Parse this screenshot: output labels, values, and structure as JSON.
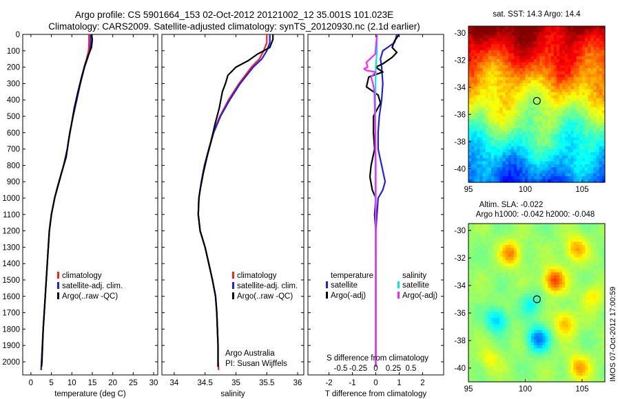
{
  "header": {
    "line1": "Argo profile: CS 5901664_153 02-Oct-2012 20121002_12 35.001S 101.023E",
    "line2": "Climatology: CARS2009. Satellite-adjusted climatology: synTS_20120930.nc (2.1d earlier)"
  },
  "colors": {
    "climatology": "#ff2020",
    "satellite": "#1e1ef0",
    "argo": "#000000",
    "salinity_satellite": "#00e8e8",
    "salinity_argo": "#ff20ff"
  },
  "chart_data": [
    {
      "type": "line",
      "id": "temperature_profile",
      "xlabel": "temperature (deg C)",
      "xlim": [
        -2,
        31
      ],
      "xticks": [
        0,
        5,
        10,
        15,
        20,
        25,
        30
      ],
      "ylim": [
        2080,
        0
      ],
      "yticks": [
        0,
        100,
        200,
        300,
        400,
        500,
        600,
        700,
        800,
        900,
        1000,
        1100,
        1200,
        1300,
        1400,
        1500,
        1600,
        1700,
        1800,
        1900,
        2000
      ],
      "legend": [
        "climatology",
        "satellite-adj. clim.",
        "Argo(..raw -QC)"
      ],
      "series": [
        {
          "name": "climatology",
          "color_key": "climatology",
          "points": [
            [
              14.2,
              0
            ],
            [
              14.2,
              50
            ],
            [
              14.1,
              100
            ],
            [
              13.6,
              150
            ],
            [
              13.0,
              200
            ],
            [
              12.0,
              300
            ],
            [
              11.2,
              400
            ],
            [
              10.3,
              500
            ],
            [
              9.5,
              600
            ],
            [
              8.9,
              700
            ],
            [
              8.0,
              800
            ],
            [
              6.9,
              900
            ],
            [
              5.8,
              1000
            ],
            [
              5.0,
              1100
            ],
            [
              4.5,
              1200
            ],
            [
              4.0,
              1400
            ],
            [
              3.5,
              1600
            ],
            [
              3.0,
              1800
            ],
            [
              2.6,
              2000
            ],
            [
              2.5,
              2050
            ]
          ]
        },
        {
          "name": "satellite-adj. clim.",
          "color_key": "satellite",
          "points": [
            [
              14.6,
              0
            ],
            [
              14.6,
              50
            ],
            [
              14.4,
              100
            ],
            [
              13.8,
              150
            ],
            [
              13.1,
              200
            ],
            [
              12.1,
              300
            ],
            [
              11.2,
              400
            ],
            [
              10.3,
              500
            ],
            [
              9.5,
              600
            ],
            [
              8.9,
              700
            ],
            [
              8.0,
              800
            ],
            [
              6.9,
              900
            ],
            [
              5.8,
              1000
            ],
            [
              5.0,
              1100
            ],
            [
              4.5,
              1200
            ],
            [
              4.0,
              1400
            ],
            [
              3.5,
              1600
            ],
            [
              3.0,
              1800
            ],
            [
              2.6,
              2000
            ],
            [
              2.5,
              2050
            ]
          ]
        },
        {
          "name": "Argo(..raw -QC)",
          "color_key": "argo",
          "points": [
            [
              14.8,
              0
            ],
            [
              15.0,
              30
            ],
            [
              14.8,
              80
            ],
            [
              14.0,
              130
            ],
            [
              13.3,
              180
            ],
            [
              12.5,
              250
            ],
            [
              11.5,
              350
            ],
            [
              10.6,
              450
            ],
            [
              9.9,
              550
            ],
            [
              9.2,
              650
            ],
            [
              8.6,
              750
            ],
            [
              7.3,
              860
            ],
            [
              6.4,
              940
            ],
            [
              5.8,
              1000
            ],
            [
              5.0,
              1100
            ],
            [
              4.5,
              1200
            ],
            [
              4.0,
              1400
            ],
            [
              3.5,
              1600
            ],
            [
              3.0,
              1800
            ],
            [
              2.7,
              2000
            ],
            [
              2.6,
              2030
            ]
          ]
        }
      ]
    },
    {
      "type": "line",
      "id": "salinity_profile",
      "xlabel": "salinity",
      "xlim": [
        33.8,
        36.1
      ],
      "xticks": [
        34,
        34.5,
        35,
        35.5,
        36
      ],
      "ylim": [
        2080,
        0
      ],
      "legend": [
        "climatology",
        "satellite-adj. clim.",
        "Argo(..raw -QC)"
      ],
      "annotation": [
        "Argo Australia",
        "PI: Susan Wijffels"
      ],
      "series": [
        {
          "name": "climatology",
          "color_key": "climatology",
          "points": [
            [
              35.5,
              0
            ],
            [
              35.5,
              50
            ],
            [
              35.45,
              100
            ],
            [
              35.38,
              150
            ],
            [
              35.25,
              200
            ],
            [
              35.05,
              300
            ],
            [
              34.88,
              400
            ],
            [
              34.74,
              500
            ],
            [
              34.63,
              600
            ],
            [
              34.56,
              700
            ],
            [
              34.49,
              800
            ],
            [
              34.44,
              900
            ],
            [
              34.4,
              1000
            ],
            [
              34.39,
              1100
            ],
            [
              34.42,
              1200
            ],
            [
              34.5,
              1300
            ],
            [
              34.56,
              1400
            ],
            [
              34.62,
              1500
            ],
            [
              34.67,
              1600
            ],
            [
              34.69,
              1700
            ],
            [
              34.7,
              1800
            ],
            [
              34.71,
              1900
            ],
            [
              34.71,
              2000
            ],
            [
              34.72,
              2050
            ]
          ]
        },
        {
          "name": "satellite-adj. clim.",
          "color_key": "satellite",
          "points": [
            [
              35.55,
              0
            ],
            [
              35.55,
              50
            ],
            [
              35.5,
              100
            ],
            [
              35.42,
              150
            ],
            [
              35.28,
              200
            ],
            [
              35.07,
              300
            ],
            [
              34.9,
              400
            ],
            [
              34.75,
              500
            ],
            [
              34.64,
              600
            ],
            [
              34.56,
              700
            ],
            [
              34.49,
              800
            ],
            [
              34.44,
              900
            ],
            [
              34.4,
              1000
            ],
            [
              34.39,
              1100
            ],
            [
              34.42,
              1200
            ],
            [
              34.5,
              1300
            ],
            [
              34.56,
              1400
            ],
            [
              34.62,
              1500
            ],
            [
              34.67,
              1600
            ],
            [
              34.69,
              1700
            ],
            [
              34.7,
              1800
            ],
            [
              34.71,
              1900
            ],
            [
              34.71,
              2000
            ],
            [
              34.71,
              2030
            ]
          ]
        },
        {
          "name": "Argo(..raw -QC)",
          "color_key": "argo",
          "points": [
            [
              35.6,
              0
            ],
            [
              35.6,
              30
            ],
            [
              35.55,
              80
            ],
            [
              35.35,
              120
            ],
            [
              35.2,
              160
            ],
            [
              35.0,
              200
            ],
            [
              34.87,
              250
            ],
            [
              34.83,
              300
            ],
            [
              34.78,
              350
            ],
            [
              34.73,
              450
            ],
            [
              34.66,
              550
            ],
            [
              34.6,
              650
            ],
            [
              34.53,
              750
            ],
            [
              34.47,
              850
            ],
            [
              34.42,
              950
            ],
            [
              34.4,
              1000
            ],
            [
              34.39,
              1100
            ],
            [
              34.42,
              1200
            ],
            [
              34.5,
              1300
            ],
            [
              34.56,
              1400
            ],
            [
              34.62,
              1500
            ],
            [
              34.67,
              1600
            ],
            [
              34.69,
              1700
            ],
            [
              34.7,
              1800
            ],
            [
              34.71,
              1900
            ],
            [
              34.71,
              2000
            ],
            [
              34.71,
              2030
            ]
          ]
        }
      ]
    },
    {
      "type": "line",
      "id": "difference_profile",
      "xlabel": "T difference from climatology",
      "xlim": [
        -2.9,
        2.9
      ],
      "xticks": [
        -2,
        -1,
        0,
        1,
        2
      ],
      "top_axis_label": "S difference from climatology",
      "top_ticks": [
        "-0.5",
        "-0.25",
        "0",
        "0.25",
        "0.5"
      ],
      "ylim": [
        2080,
        0
      ],
      "legend": {
        "temperature_title": "temperature",
        "salinity_title": "salinity",
        "satellite": "satellite",
        "argo": "Argo(-adj)"
      },
      "series": [
        {
          "name": "temperature satellite",
          "color_key": "satellite",
          "points": [
            [
              0.9,
              0
            ],
            [
              0.8,
              50
            ],
            [
              0.3,
              100
            ],
            [
              0.2,
              150
            ],
            [
              0.25,
              200
            ],
            [
              0.3,
              300
            ],
            [
              0.25,
              400
            ],
            [
              0.15,
              500
            ],
            [
              0.1,
              600
            ],
            [
              0.1,
              700
            ],
            [
              0.25,
              800
            ],
            [
              0.4,
              900
            ],
            [
              0.3,
              950
            ],
            [
              0.1,
              1000
            ],
            [
              0.05,
              1100
            ],
            [
              0.0,
              1200
            ],
            [
              0.0,
              2030
            ]
          ]
        },
        {
          "name": "temperature Argo(-adj)",
          "color_key": "argo",
          "points": [
            [
              1.0,
              0
            ],
            [
              0.8,
              40
            ],
            [
              0.7,
              80
            ],
            [
              0.9,
              110
            ],
            [
              0.7,
              140
            ],
            [
              0.3,
              180
            ],
            [
              0.0,
              200
            ],
            [
              0.3,
              230
            ],
            [
              -0.3,
              260
            ],
            [
              -0.4,
              320
            ],
            [
              0.1,
              370
            ],
            [
              0.2,
              420
            ],
            [
              -0.1,
              500
            ],
            [
              -0.1,
              600
            ],
            [
              -0.05,
              700
            ],
            [
              -0.2,
              800
            ],
            [
              -0.25,
              870
            ],
            [
              -0.15,
              950
            ],
            [
              0.0,
              1000
            ],
            [
              -0.05,
              1100
            ],
            [
              0.0,
              1200
            ],
            [
              0.0,
              2030
            ]
          ]
        },
        {
          "name": "salinity satellite",
          "color_key": "salinity_satellite",
          "points": [
            [
              0.05,
              0
            ],
            [
              0.05,
              100
            ],
            [
              0.0,
              200
            ],
            [
              -0.02,
              400
            ],
            [
              -0.02,
              700
            ],
            [
              -0.02,
              1000
            ],
            [
              0.0,
              1300
            ],
            [
              0.0,
              2030
            ]
          ]
        },
        {
          "name": "salinity Argo(-adj)",
          "color_key": "salinity_argo",
          "points": [
            [
              0.05,
              0
            ],
            [
              -0.02,
              120
            ],
            [
              -0.4,
              170
            ],
            [
              -0.35,
              200
            ],
            [
              -0.5,
              210
            ],
            [
              -0.4,
              220
            ],
            [
              0.0,
              230
            ],
            [
              -0.2,
              260
            ],
            [
              -0.12,
              300
            ],
            [
              -0.06,
              350
            ],
            [
              -0.04,
              450
            ],
            [
              -0.02,
              600
            ],
            [
              0.0,
              800
            ],
            [
              0.0,
              2030
            ]
          ]
        }
      ]
    },
    {
      "type": "heatmap",
      "id": "sst_map",
      "title": "sat. SST: 14.3 Argo: 14.4",
      "xlim": [
        95,
        107
      ],
      "xticks": [
        95,
        100,
        105
      ],
      "ylim": [
        -41,
        -29.5
      ],
      "yticks": [
        -30,
        -32,
        -34,
        -36,
        -38,
        -40
      ],
      "marker": [
        101.023,
        -35.001
      ]
    },
    {
      "type": "heatmap",
      "id": "sla_map",
      "title_line1": "Altim. SLA: -0.022",
      "title_line2": "Argo h1000: -0.042 h2000: -0.048",
      "xlim": [
        95,
        107
      ],
      "xticks": [
        95,
        100,
        105
      ],
      "ylim": [
        -41,
        -29.5
      ],
      "yticks": [
        -30,
        -32,
        -34,
        -36,
        -38,
        -40
      ],
      "marker": [
        101.023,
        -35.001
      ]
    }
  ],
  "footer": {
    "timestamp": "IMOS 07-Oct-2012 17:00:59"
  }
}
